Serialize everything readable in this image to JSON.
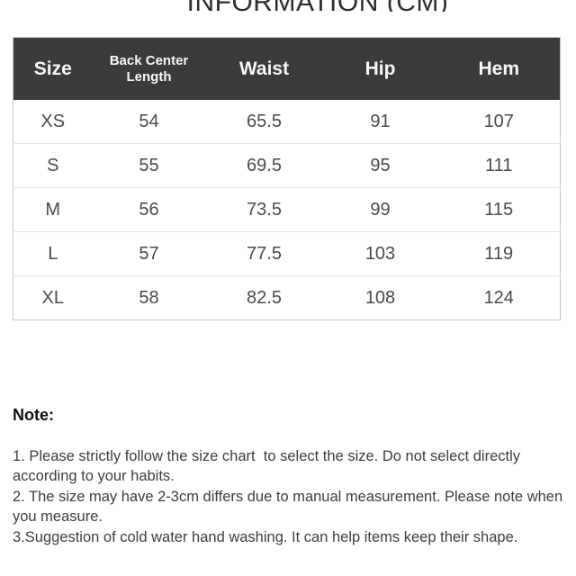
{
  "title": "INFORMATION (CM)",
  "size_table": {
    "columns": [
      "Size",
      "Back Center Length",
      "Waist",
      "Hip",
      "Hem"
    ],
    "rows": [
      [
        "XS",
        "54",
        "65.5",
        "91",
        "107"
      ],
      [
        "S",
        "55",
        "69.5",
        "95",
        "111"
      ],
      [
        "M",
        "56",
        "73.5",
        "99",
        "115"
      ],
      [
        "L",
        "57",
        "77.5",
        "103",
        "119"
      ],
      [
        "XL",
        "58",
        "82.5",
        "108",
        "124"
      ]
    ],
    "colors": {
      "header_bg": "#3b3b3b",
      "header_text": "#f7f7f7",
      "body_text": "#4a4a4a",
      "row_divider": "#e4e4e4",
      "table_border": "#c9c9c9"
    }
  },
  "notes": {
    "heading": "Note:",
    "items": [
      "1. Please strictly follow the size chart  to select the size. Do not select directly according to your habits.",
      "2. The size may have 2-3cm differs due to manual measurement. Please note when you measure.",
      "3.Suggestion of cold water hand washing. It can help items keep their shape."
    ]
  }
}
